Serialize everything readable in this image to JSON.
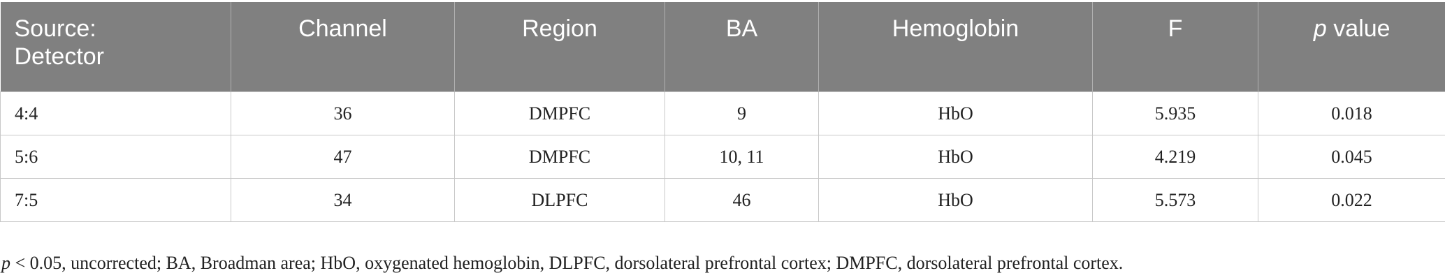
{
  "table": {
    "header": [
      "Source: Detector",
      "Channel",
      "Region",
      "BA",
      "Hemoglobin",
      "F",
      "p value"
    ],
    "rows": [
      [
        "4:4",
        "36",
        "DMPFC",
        "9",
        "HbO",
        "5.935",
        "0.018"
      ],
      [
        "5:6",
        "47",
        "DMPFC",
        "10, 11",
        "HbO",
        "4.219",
        "0.045"
      ],
      [
        "7:5",
        "34",
        "DLPFC",
        "46",
        "HbO",
        "5.573",
        "0.022"
      ]
    ]
  },
  "footnote": "p < 0.05, uncorrected; BA, Broadman area; HbO, oxygenated hemoglobin, DLPFC, dorsolateral prefrontal cortex; DMPFC, dorsolateral prefrontal cortex."
}
